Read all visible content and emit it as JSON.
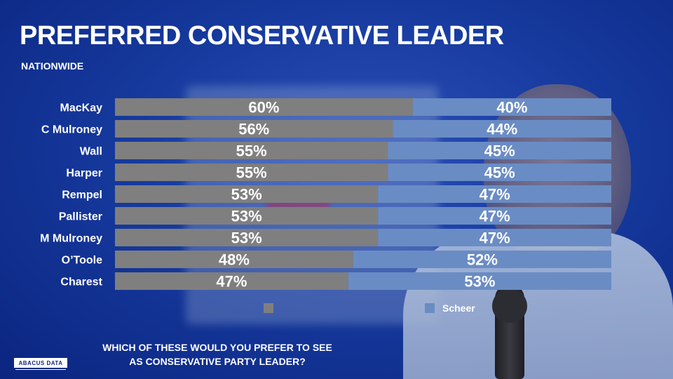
{
  "title": "PREFERRED CONSERVATIVE LEADER",
  "subtitle": "NATIONWIDE",
  "question": "WHICH OF THESE WOULD YOU PREFER TO SEE AS CONSERVATIVE PARTY LEADER?",
  "logo_text": "ABACUS DATA",
  "colors": {
    "candidate_bar": "#7f7f7f",
    "scheer_bar": "#6a8cc4"
  },
  "chart_data": {
    "type": "bar",
    "orientation": "horizontal",
    "stacked": true,
    "categories": [
      "MacKay",
      "C Mulroney",
      "Wall",
      "Harper",
      "Rempel",
      "Pallister",
      "M Mulroney",
      "O'Toole",
      "Charest"
    ],
    "category_display": [
      "MacKay",
      "C Mulroney",
      "Wall",
      "Harper",
      "Rempel",
      "Pallister",
      "M Mulroney",
      "O’Toole",
      "Charest"
    ],
    "series": [
      {
        "values": [
          60,
          56,
          55,
          55,
          53,
          53,
          53,
          48,
          47
        ],
        "color": "#7f7f7f"
      },
      {
        "name": "Scheer",
        "values": [
          40,
          44,
          45,
          45,
          47,
          47,
          47,
          52,
          53
        ],
        "color": "#6a8cc4"
      }
    ],
    "value_suffix": "%",
    "xlim": [
      0,
      100
    ],
    "legend": [
      "",
      "Scheer"
    ],
    "legend_placement": "bottom",
    "grid": false
  }
}
